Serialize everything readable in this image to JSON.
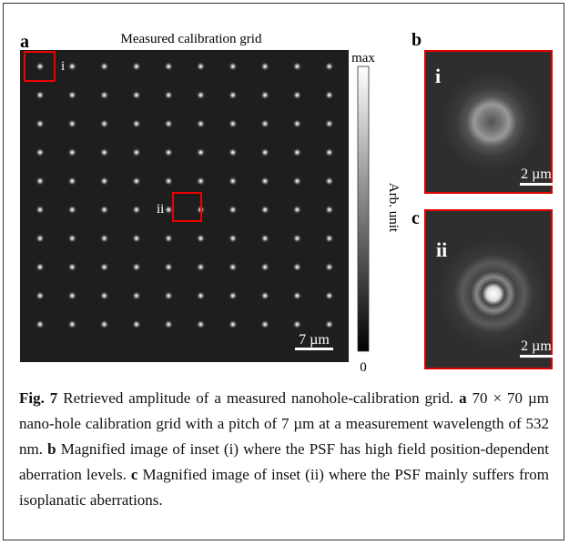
{
  "panel_a": {
    "label": "a",
    "title": "Measured calibration grid",
    "inset_i": "i",
    "inset_ii": "ii",
    "scale_bar": "7 µm",
    "colorbar": {
      "max": "max",
      "min": "0",
      "label": "Arb. unit"
    }
  },
  "panel_b": {
    "label": "b",
    "inset": "i",
    "scale_bar": "2 µm"
  },
  "panel_c": {
    "label": "c",
    "inset": "ii",
    "scale_bar": "2 µm"
  },
  "caption": {
    "figure": "Fig. 7",
    "text": " Retrieved amplitude of a measured nanohole-calibration grid. ",
    "parts": [
      {
        "label": "a",
        "text": " 70 × 70 µm nano-hole calibration grid with a pitch of 7 µm at a measurement wavelength of 532 nm. "
      },
      {
        "label": "b",
        "text": " Magnified image of inset (i) where the PSF has high field position-dependent aberration levels. "
      },
      {
        "label": "c",
        "text": " Magnified image of inset (ii) where the PSF mainly suffers from isoplanatic aberrations."
      }
    ]
  }
}
